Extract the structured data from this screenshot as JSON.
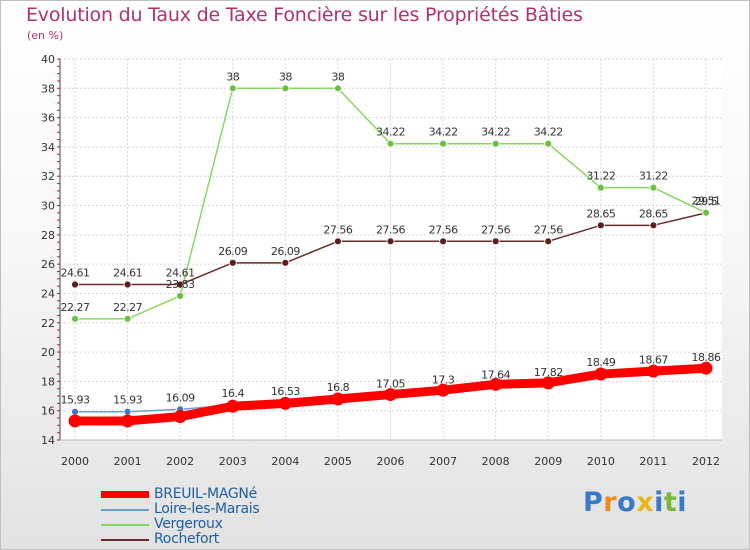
{
  "title": "Evolution du Taux de Taxe Foncière sur les Propriétés Bâties",
  "unit": "(en %)",
  "brand": {
    "text": "Proxiti",
    "letters": [
      "P",
      "r",
      "o",
      "x",
      "i",
      "t",
      "i"
    ],
    "colors": [
      "#3a78c8",
      "#f08a1e",
      "#3a78c8",
      "#e8b81a",
      "#3a78c8",
      "#7cb83a",
      "#3a78c8"
    ]
  },
  "chart_data": {
    "type": "line",
    "title": "Evolution du Taux de Taxe Foncière sur les Propriétés Bâties",
    "ylabel": "(en %)",
    "xlabel": "",
    "x": [
      "2000",
      "2001",
      "2002",
      "2003",
      "2004",
      "2005",
      "2006",
      "2007",
      "2008",
      "2009",
      "2010",
      "2011",
      "2012"
    ],
    "ylim": [
      14,
      40
    ],
    "yticks": [
      14,
      16,
      18,
      20,
      22,
      24,
      26,
      28,
      30,
      32,
      34,
      36,
      38,
      40
    ],
    "grid": true,
    "series": [
      {
        "name": "BREUIL-MAGNé",
        "color": "#ff0000",
        "marker": "#ff0000",
        "values": [
          15.3,
          15.3,
          15.6,
          16.3,
          16.5,
          16.8,
          17.1,
          17.4,
          17.8,
          17.9,
          18.5,
          18.7,
          18.9
        ],
        "labels": [
          "",
          "",
          "",
          "",
          "",
          "",
          "",
          "",
          "",
          "",
          "",
          "",
          ""
        ]
      },
      {
        "name": "Loire-les-Marais",
        "color": "#6a9fd0",
        "marker": "#3a78c8",
        "values": [
          15.93,
          15.93,
          16.09,
          16.4,
          16.53,
          16.8,
          17.05,
          17.3,
          17.64,
          17.82,
          18.49,
          18.67,
          18.86
        ],
        "labels": [
          "15.93",
          "15.93",
          "16.09",
          "16.4",
          "16.53",
          "16.8",
          "17.05",
          "17.3",
          "17.64",
          "17.82",
          "18.49",
          "18.67",
          "18.86"
        ]
      },
      {
        "name": "Vergeroux",
        "color": "#88d860",
        "marker": "#6cc040",
        "values": [
          22.27,
          22.27,
          23.83,
          38,
          38,
          38,
          34.22,
          34.22,
          34.22,
          34.22,
          31.22,
          31.22,
          29.51
        ],
        "labels": [
          "22.27",
          "22.27",
          "23.83",
          "38",
          "38",
          "38",
          "34.22",
          "34.22",
          "34.22",
          "34.22",
          "31.22",
          "31.22",
          "29.51"
        ]
      },
      {
        "name": "Rochefort",
        "color": "#6b2a2a",
        "marker": "#5a1e1e",
        "values": [
          24.61,
          24.61,
          24.61,
          26.09,
          26.09,
          27.56,
          27.56,
          27.56,
          27.56,
          27.56,
          28.65,
          28.65,
          29.5
        ],
        "labels": [
          "24.61",
          "24.61",
          "24.61",
          "26.09",
          "26.09",
          "27.56",
          "27.56",
          "27.56",
          "27.56",
          "27.56",
          "28.65",
          "28.65",
          "29.5"
        ]
      }
    ]
  }
}
